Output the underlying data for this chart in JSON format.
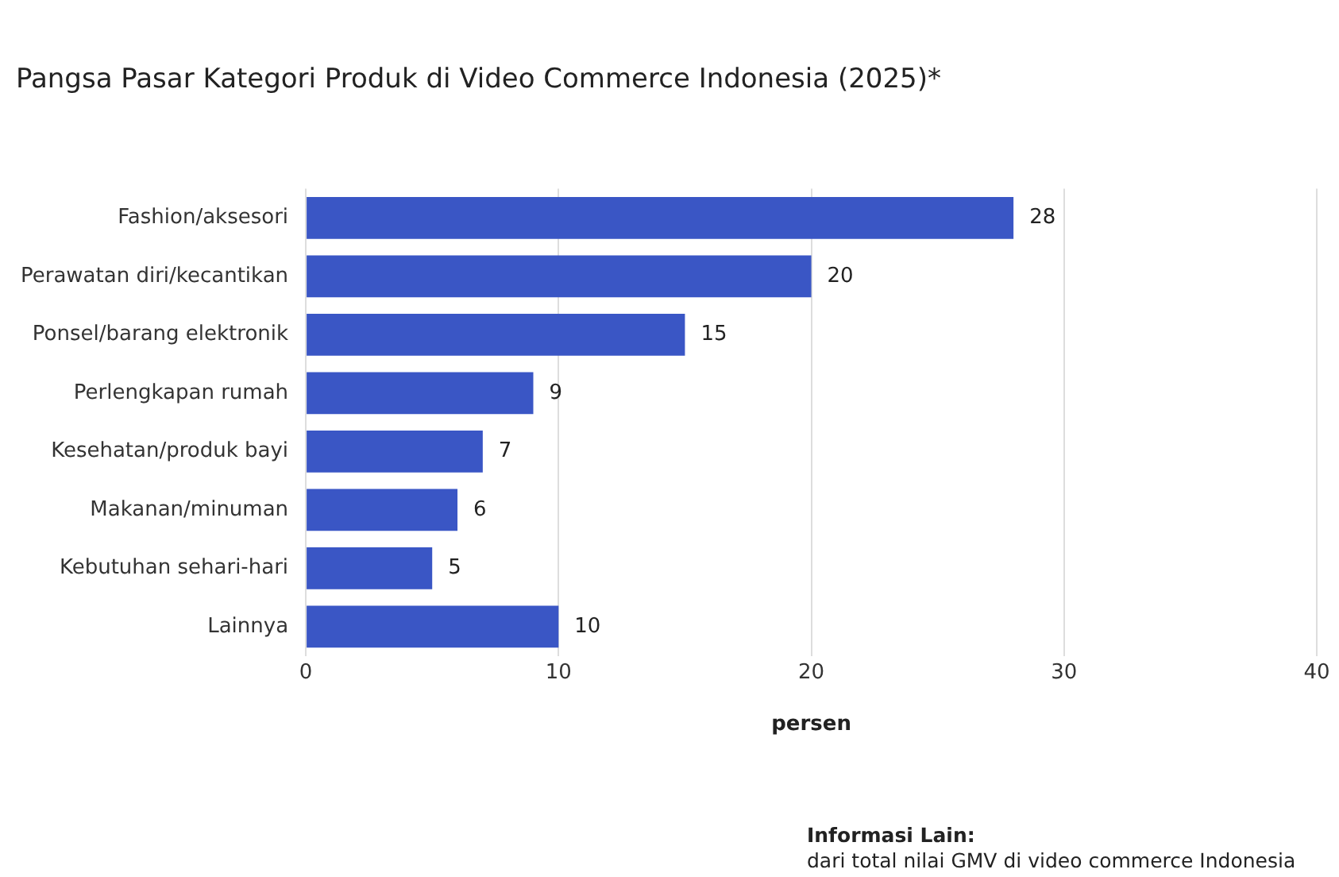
{
  "chart_data": {
    "type": "bar",
    "orientation": "horizontal",
    "title": "Pangsa Pasar Kategori Produk di Video Commerce Indonesia (2025)*",
    "xlabel": "persen",
    "categories": [
      "Fashion/aksesori",
      "Perawatan diri/kecantikan",
      "Ponsel/barang elektronik",
      "Perlengkapan rumah",
      "Kesehatan/produk bayi",
      "Makanan/minuman",
      "Kebutuhan sehari-hari",
      "Lainnya"
    ],
    "values": [
      28,
      20,
      15,
      9,
      7,
      6,
      5,
      10
    ],
    "color": "#3a56c5",
    "xlim": [
      0,
      40
    ],
    "xticks": [
      0,
      10,
      20,
      30,
      40
    ],
    "grid": "x",
    "legend": false,
    "data_labels": true,
    "annotations": [
      "Informasi Lain:",
      "dari total nilai GMV di video commerce Indonesia"
    ]
  }
}
